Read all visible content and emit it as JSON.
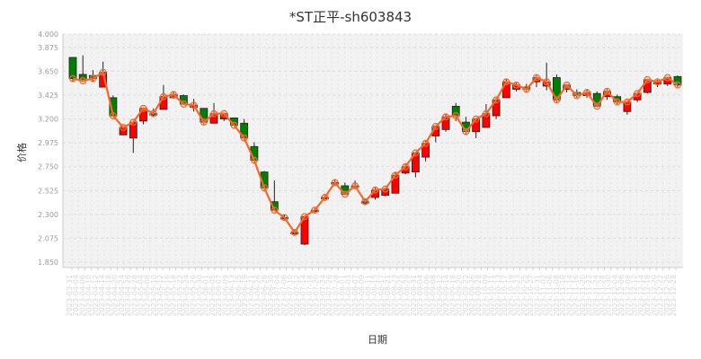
{
  "chart_data": {
    "type": "candlestick",
    "title": "*ST正平-sh603843",
    "xlabel": "日期",
    "ylabel": "价格",
    "ylim": [
      1.8,
      4.0
    ],
    "y_ticks": [
      "1.850",
      "2.075",
      "2.300",
      "2.525",
      "2.750",
      "2.975",
      "3.200",
      "3.425",
      "3.650",
      "3.875",
      "4.000"
    ],
    "x_tick_labels": [
      "2023-03-31",
      "2023-04-04",
      "2023-04-06",
      "2023-04-10",
      "2023-04-12",
      "2023-04-14",
      "2023-04-18",
      "2023-04-20",
      "2023-04-24",
      "2023-04-26",
      "2023-04-28",
      "2023-05-04",
      "2023-05-08",
      "2023-05-10",
      "2023-05-12",
      "2023-05-16",
      "2023-05-18",
      "2023-05-22",
      "2023-05-24",
      "2023-05-26",
      "2023-05-30",
      "2023-06-01",
      "2023-06-05",
      "2023-06-07",
      "2023-06-09",
      "2023-06-13",
      "2023-06-15",
      "2023-06-19",
      "2023-06-21",
      "2023-06-26",
      "2023-06-28",
      "2023-06-30",
      "2023-07-04",
      "2023-07-06",
      "2023-07-10",
      "2023-07-12",
      "2023-07-14",
      "2023-07-18",
      "2023-07-20",
      "2023-07-24",
      "2023-07-26",
      "2023-07-28",
      "2023-08-01",
      "2023-08-03",
      "2023-08-07",
      "2023-08-09",
      "2023-08-11",
      "2023-08-15",
      "2023-08-17",
      "2023-08-21",
      "2023-08-23",
      "2023-08-25",
      "2023-08-29",
      "2023-08-31",
      "2023-09-04",
      "2023-09-06",
      "2023-09-08",
      "2023-09-12",
      "2023-09-14",
      "2023-09-18",
      "2023-09-20",
      "2023-09-22",
      "2023-09-26",
      "2023-09-28",
      "2023-10-09",
      "2023-10-11",
      "2023-10-13",
      "2023-10-17",
      "2023-10-19",
      "2023-10-23",
      "2023-10-25",
      "2023-10-27",
      "2023-10-31",
      "2023-11-02",
      "2023-11-06",
      "2023-11-08",
      "2023-11-10",
      "2023-11-14",
      "2023-11-16",
      "2023-11-20",
      "2023-11-22",
      "2023-11-24",
      "2023-11-28",
      "2023-11-30",
      "2023-12-04",
      "2023-12-06",
      "2023-12-08",
      "2023-12-12",
      "2023-12-14",
      "2023-12-18",
      "2023-12-20",
      "2023-12-22",
      "2023-12-26",
      "2023-12-28"
    ],
    "candles": [
      {
        "open": 3.78,
        "close": 3.58,
        "high": 3.78,
        "low": 3.55
      },
      {
        "open": 3.62,
        "close": 3.56,
        "high": 3.8,
        "low": 3.55
      },
      {
        "open": 3.61,
        "close": 3.58,
        "high": 3.66,
        "low": 3.55
      },
      {
        "open": 3.5,
        "close": 3.64,
        "high": 3.74,
        "low": 3.5
      },
      {
        "open": 3.4,
        "close": 3.23,
        "high": 3.42,
        "low": 3.22
      },
      {
        "open": 3.05,
        "close": 3.12,
        "high": 3.13,
        "low": 3.05
      },
      {
        "open": 3.02,
        "close": 3.17,
        "high": 3.17,
        "low": 2.88
      },
      {
        "open": 3.18,
        "close": 3.3,
        "high": 3.31,
        "low": 3.15
      },
      {
        "open": 3.25,
        "close": 3.25,
        "high": 3.3,
        "low": 3.22
      },
      {
        "open": 3.29,
        "close": 3.41,
        "high": 3.52,
        "low": 3.29
      },
      {
        "open": 3.4,
        "close": 3.43,
        "high": 3.46,
        "low": 3.39
      },
      {
        "open": 3.42,
        "close": 3.34,
        "high": 3.43,
        "low": 3.33
      },
      {
        "open": 3.31,
        "close": 3.33,
        "high": 3.39,
        "low": 3.27
      },
      {
        "open": 3.3,
        "close": 3.17,
        "high": 3.3,
        "low": 3.15
      },
      {
        "open": 3.16,
        "close": 3.25,
        "high": 3.35,
        "low": 3.16
      },
      {
        "open": 3.2,
        "close": 3.25,
        "high": 3.26,
        "low": 3.18
      },
      {
        "open": 3.21,
        "close": 3.14,
        "high": 3.21,
        "low": 3.14
      },
      {
        "open": 3.16,
        "close": 3.02,
        "high": 3.2,
        "low": 3.0
      },
      {
        "open": 2.94,
        "close": 2.81,
        "high": 2.98,
        "low": 2.78
      },
      {
        "open": 2.7,
        "close": 2.55,
        "high": 2.71,
        "low": 2.52
      },
      {
        "open": 2.42,
        "close": 2.34,
        "high": 2.62,
        "low": 2.34
      },
      {
        "open": 2.27,
        "close": 2.27,
        "high": 2.3,
        "low": 2.25
      },
      {
        "open": 2.13,
        "close": 2.13,
        "high": 2.16,
        "low": 2.11
      },
      {
        "open": 2.02,
        "close": 2.28,
        "high": 2.29,
        "low": 2.01
      },
      {
        "open": 2.34,
        "close": 2.34,
        "high": 2.36,
        "low": 2.32
      },
      {
        "open": 2.46,
        "close": 2.46,
        "high": 2.48,
        "low": 2.44
      },
      {
        "open": 2.6,
        "close": 2.6,
        "high": 2.63,
        "low": 2.58
      },
      {
        "open": 2.57,
        "close": 2.49,
        "high": 2.6,
        "low": 2.48
      },
      {
        "open": 2.57,
        "close": 2.57,
        "high": 2.62,
        "low": 2.55
      },
      {
        "open": 2.42,
        "close": 2.42,
        "high": 2.45,
        "low": 2.39
      },
      {
        "open": 2.46,
        "close": 2.53,
        "high": 2.55,
        "low": 2.44
      },
      {
        "open": 2.48,
        "close": 2.54,
        "high": 2.55,
        "low": 2.47
      },
      {
        "open": 2.5,
        "close": 2.67,
        "high": 2.7,
        "low": 2.5
      },
      {
        "open": 2.69,
        "close": 2.75,
        "high": 2.78,
        "low": 2.68
      },
      {
        "open": 2.7,
        "close": 2.88,
        "high": 2.89,
        "low": 2.65
      },
      {
        "open": 2.84,
        "close": 2.97,
        "high": 3.0,
        "low": 2.8
      },
      {
        "open": 3.04,
        "close": 3.13,
        "high": 3.14,
        "low": 2.98
      },
      {
        "open": 3.1,
        "close": 3.22,
        "high": 3.25,
        "low": 3.08
      },
      {
        "open": 3.32,
        "close": 3.23,
        "high": 3.35,
        "low": 3.18
      },
      {
        "open": 3.17,
        "close": 3.08,
        "high": 3.22,
        "low": 3.05
      },
      {
        "open": 3.08,
        "close": 3.2,
        "high": 3.21,
        "low": 3.02
      },
      {
        "open": 3.12,
        "close": 3.25,
        "high": 3.34,
        "low": 3.12
      },
      {
        "open": 3.23,
        "close": 3.38,
        "high": 3.4,
        "low": 3.2
      },
      {
        "open": 3.4,
        "close": 3.55,
        "high": 3.58,
        "low": 3.4
      },
      {
        "open": 3.48,
        "close": 3.52,
        "high": 3.54,
        "low": 3.46
      },
      {
        "open": 3.5,
        "close": 3.48,
        "high": 3.53,
        "low": 3.46
      },
      {
        "open": 3.55,
        "close": 3.59,
        "high": 3.61,
        "low": 3.5
      },
      {
        "open": 3.51,
        "close": 3.55,
        "high": 3.73,
        "low": 3.47
      },
      {
        "open": 3.59,
        "close": 3.38,
        "high": 3.62,
        "low": 3.36
      },
      {
        "open": 3.48,
        "close": 3.52,
        "high": 3.53,
        "low": 3.45
      },
      {
        "open": 3.45,
        "close": 3.42,
        "high": 3.48,
        "low": 3.4
      },
      {
        "open": 3.42,
        "close": 3.45,
        "high": 3.48,
        "low": 3.4
      },
      {
        "open": 3.44,
        "close": 3.32,
        "high": 3.46,
        "low": 3.31
      },
      {
        "open": 3.41,
        "close": 3.46,
        "high": 3.48,
        "low": 3.38
      },
      {
        "open": 3.41,
        "close": 3.36,
        "high": 3.43,
        "low": 3.34
      },
      {
        "open": 3.27,
        "close": 3.36,
        "high": 3.36,
        "low": 3.24
      },
      {
        "open": 3.38,
        "close": 3.44,
        "high": 3.45,
        "low": 3.36
      },
      {
        "open": 3.45,
        "close": 3.57,
        "high": 3.58,
        "low": 3.44
      },
      {
        "open": 3.53,
        "close": 3.55,
        "high": 3.57,
        "low": 3.5
      },
      {
        "open": 3.53,
        "close": 3.59,
        "high": 3.6,
        "low": 3.51
      },
      {
        "open": 3.6,
        "close": 3.52,
        "high": 3.61,
        "low": 3.5
      }
    ],
    "ma_line_color": "#f4692b",
    "up_color": "#ff0000",
    "down_color": "#008000",
    "grid": true
  }
}
